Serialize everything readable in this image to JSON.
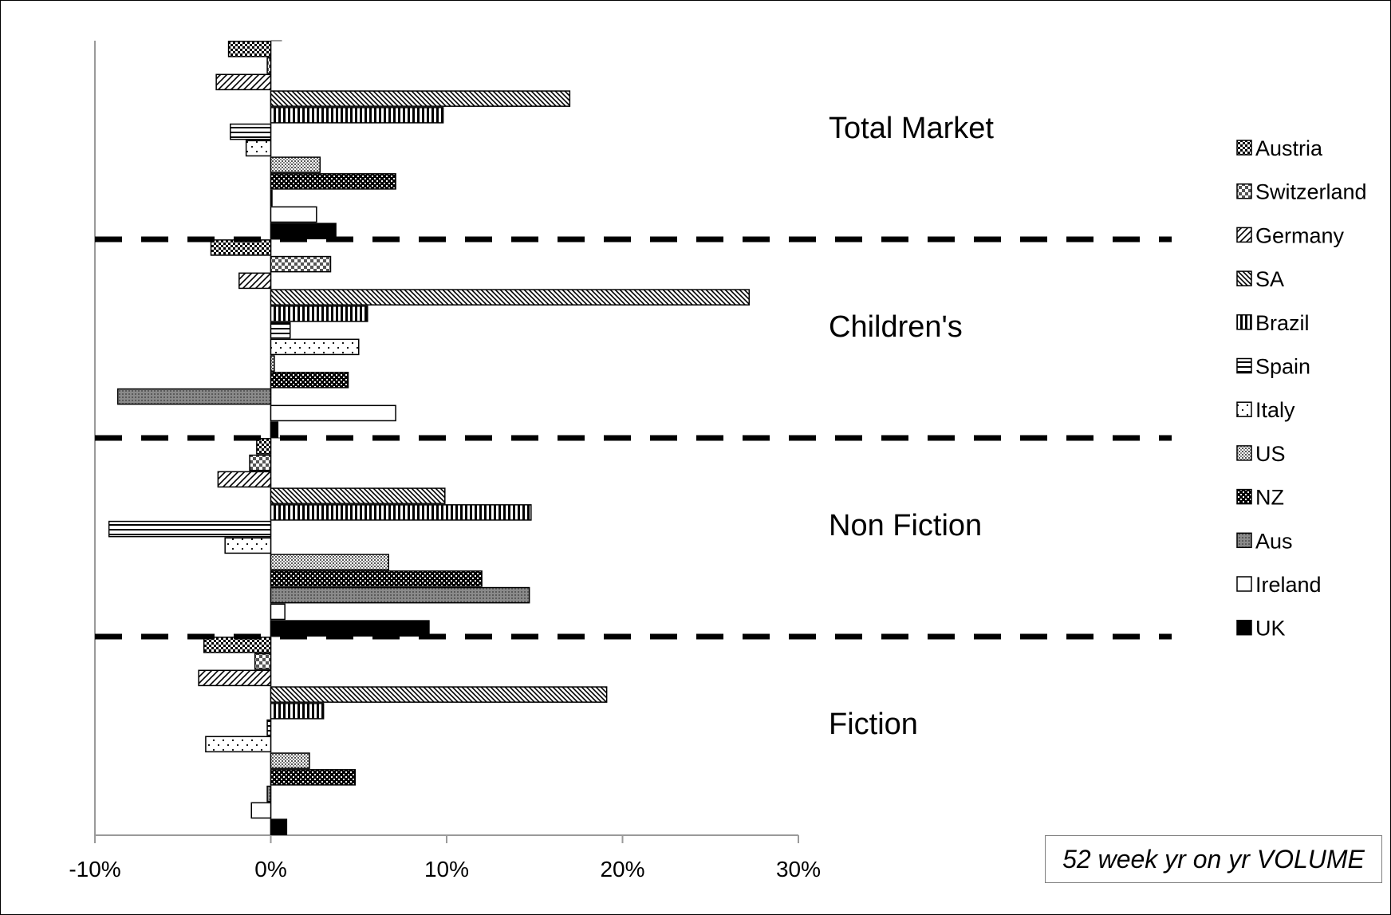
{
  "chart_data": {
    "type": "bar",
    "orientation": "horizontal",
    "title": "",
    "xlabel": "",
    "ylabel": "",
    "xlim": [
      -0.1,
      0.3
    ],
    "x_ticks": [
      "-10%",
      "0%",
      "10%",
      "20%",
      "30%"
    ],
    "grid": false,
    "legend_position": "right",
    "annotation": "52 week yr on yr VOLUME",
    "categories": [
      "Total Market",
      "Children's",
      "Non Fiction",
      "Fiction"
    ],
    "series": [
      {
        "name": "Austria",
        "values": [
          -0.024,
          -0.034,
          -0.008,
          -0.038
        ],
        "pattern": "checker-dense"
      },
      {
        "name": "Switzerland",
        "values": [
          -0.002,
          0.034,
          -0.012,
          -0.009
        ],
        "pattern": "checker-light"
      },
      {
        "name": "Germany",
        "values": [
          -0.031,
          -0.018,
          -0.03,
          -0.041
        ],
        "pattern": "diag-up"
      },
      {
        "name": "SA",
        "values": [
          0.17,
          0.272,
          0.099,
          0.191
        ],
        "pattern": "diag-down"
      },
      {
        "name": "Brazil",
        "values": [
          0.098,
          0.055,
          0.148,
          0.03
        ],
        "pattern": "vertical"
      },
      {
        "name": "Spain",
        "values": [
          -0.023,
          0.011,
          -0.092,
          -0.002
        ],
        "pattern": "horizontal"
      },
      {
        "name": "Italy",
        "values": [
          -0.014,
          0.05,
          -0.026,
          -0.037
        ],
        "pattern": "dots"
      },
      {
        "name": "US",
        "values": [
          0.028,
          0.002,
          0.067,
          0.022
        ],
        "pattern": "fine-dots"
      },
      {
        "name": "NZ",
        "values": [
          0.071,
          0.044,
          0.12,
          0.048
        ],
        "pattern": "dark-checker"
      },
      {
        "name": "Aus",
        "values": [
          0.0,
          -0.087,
          0.147,
          -0.002
        ],
        "pattern": "gray-grid"
      },
      {
        "name": "Ireland",
        "values": [
          0.026,
          0.071,
          0.008,
          -0.011
        ],
        "pattern": "white"
      },
      {
        "name": "UK",
        "values": [
          0.037,
          0.004,
          0.09,
          0.009
        ],
        "pattern": "black"
      }
    ]
  },
  "colors": {
    "ink": "#000000",
    "axis": "#9a9a9a",
    "note_border": "#7f7f7f"
  }
}
